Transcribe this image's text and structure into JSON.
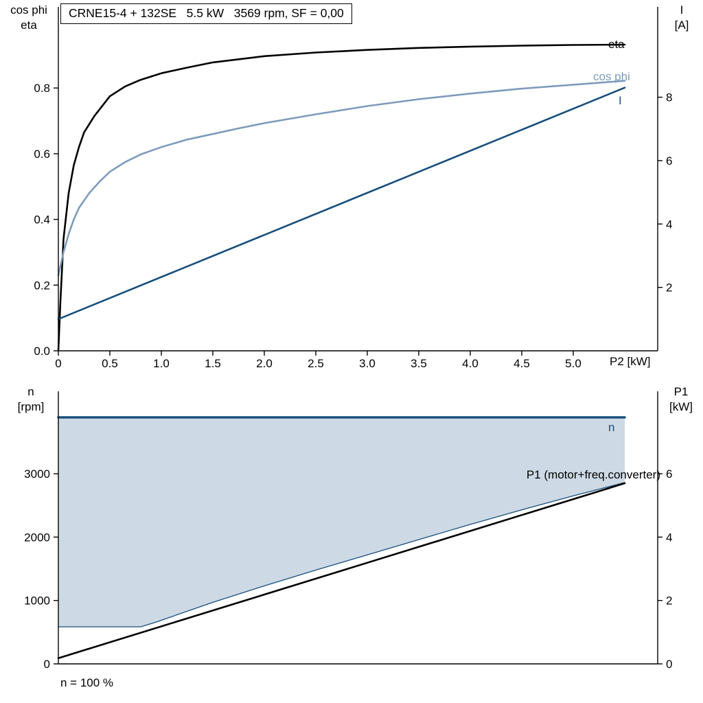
{
  "colors": {
    "axis": "#000000",
    "eta_black": "#000000",
    "cos_phi_blue": "#7d9bbb",
    "dark_blue": "#174e7c",
    "area_fill": "#cdd9e4",
    "background": "#ffffff"
  },
  "chart_data": [
    {
      "type": "line",
      "title": "CRNE15-4 + 132SE   5.5 kW   3569 rpm, SF = 0,00",
      "xlabel": "P2 [kW]",
      "ylabel_left": [
        "cos phi",
        "eta"
      ],
      "ylabel_right": [
        "I",
        "[A]"
      ],
      "x_range": [
        0,
        5.82
      ],
      "y_left_range": [
        0,
        1.047
      ],
      "y_right_range": [
        0,
        10.85
      ],
      "grid": false,
      "x_ticks": {
        "values": [
          0,
          0.5,
          1,
          1.5,
          2,
          2.5,
          3,
          3.5,
          4,
          4.5,
          5
        ],
        "labels": [
          "0",
          "0.5",
          "1.0",
          "1.5",
          "2.0",
          "2.5",
          "3.0",
          "3.5",
          "4.0",
          "4.5",
          "5.0"
        ]
      },
      "y_left_ticks": {
        "values": [
          0,
          0.2,
          0.4,
          0.6,
          0.8
        ],
        "labels": [
          "0.0",
          "0.2",
          "0.4",
          "0.6",
          "0.8"
        ]
      },
      "y_right_ticks": {
        "values": [
          2,
          4,
          6,
          8
        ],
        "labels": [
          "2",
          "4",
          "6",
          "8"
        ]
      },
      "series": [
        {
          "name": "eta",
          "color": "#000000",
          "axis": "left",
          "width": 2.6,
          "points": [
            [
              0,
              0
            ],
            [
              0.02,
              0.15
            ],
            [
              0.05,
              0.34
            ],
            [
              0.1,
              0.48
            ],
            [
              0.15,
              0.565
            ],
            [
              0.2,
              0.62
            ],
            [
              0.25,
              0.665
            ],
            [
              0.35,
              0.715
            ],
            [
              0.5,
              0.775
            ],
            [
              0.65,
              0.805
            ],
            [
              0.8,
              0.825
            ],
            [
              1,
              0.845
            ],
            [
              1.25,
              0.862
            ],
            [
              1.5,
              0.878
            ],
            [
              2,
              0.897
            ],
            [
              2.5,
              0.908
            ],
            [
              3,
              0.916
            ],
            [
              3.5,
              0.922
            ],
            [
              4,
              0.926
            ],
            [
              4.5,
              0.929
            ],
            [
              5,
              0.931
            ],
            [
              5.5,
              0.932
            ]
          ]
        },
        {
          "name": "cos phi",
          "color": "#7d9bbb",
          "axis": "left",
          "width": 2.6,
          "points": [
            [
              0,
              0.23
            ],
            [
              0.05,
              0.3
            ],
            [
              0.1,
              0.355
            ],
            [
              0.15,
              0.4
            ],
            [
              0.2,
              0.435
            ],
            [
              0.3,
              0.48
            ],
            [
              0.4,
              0.515
            ],
            [
              0.5,
              0.545
            ],
            [
              0.65,
              0.575
            ],
            [
              0.8,
              0.598
            ],
            [
              1,
              0.62
            ],
            [
              1.25,
              0.643
            ],
            [
              1.5,
              0.66
            ],
            [
              1.75,
              0.677
            ],
            [
              2,
              0.693
            ],
            [
              2.5,
              0.72
            ],
            [
              3,
              0.745
            ],
            [
              3.5,
              0.766
            ],
            [
              4,
              0.783
            ],
            [
              4.5,
              0.798
            ],
            [
              5,
              0.81
            ],
            [
              5.5,
              0.822
            ]
          ]
        },
        {
          "name": "I",
          "color": "#174e7c",
          "axis": "right",
          "width": 2.6,
          "points": [
            [
              0,
              1.0
            ],
            [
              5.5,
              8.3
            ]
          ]
        }
      ]
    },
    {
      "type": "line+area",
      "title": "",
      "xlabel": "",
      "ylabel_left": [
        "n",
        "[rpm]"
      ],
      "ylabel_right": [
        "P1",
        "[kW]"
      ],
      "annotation": "n = 100 %",
      "x_range": [
        0,
        5.82
      ],
      "y_left_range": [
        0,
        4300
      ],
      "y_right_range": [
        0,
        8.6
      ],
      "grid": false,
      "x_ticks": {
        "values": [],
        "labels": []
      },
      "y_left_ticks": {
        "values": [
          0,
          1000,
          2000,
          3000
        ],
        "labels": [
          "0",
          "1000",
          "2000",
          "3000"
        ]
      },
      "y_right_ticks": {
        "values": [
          0,
          2,
          4,
          6
        ],
        "labels": [
          "0",
          "2",
          "4",
          "6"
        ]
      },
      "area": {
        "name": "speed-range",
        "color": "#cdd9e4",
        "top_value": 3890,
        "bottom_points": [
          [
            0,
            585
          ],
          [
            0.8,
            585
          ],
          [
            0.95,
            660
          ],
          [
            1.25,
            830
          ],
          [
            1.5,
            970
          ],
          [
            2,
            1230
          ],
          [
            2.5,
            1480
          ],
          [
            3,
            1720
          ],
          [
            3.5,
            1960
          ],
          [
            4,
            2200
          ],
          [
            4.5,
            2430
          ],
          [
            5,
            2650
          ],
          [
            5.5,
            2860
          ]
        ]
      },
      "series": [
        {
          "name": "n",
          "color": "#174e7c",
          "axis": "left",
          "width": 3.4,
          "points": [
            [
              0,
              3890
            ],
            [
              5.5,
              3890
            ]
          ]
        },
        {
          "name": "min speed",
          "color": "#174e7c",
          "axis": "left",
          "width": 1.3,
          "points": [
            [
              0,
              585
            ],
            [
              0.8,
              585
            ],
            [
              0.95,
              660
            ],
            [
              1.25,
              830
            ],
            [
              1.5,
              970
            ],
            [
              2,
              1230
            ],
            [
              2.5,
              1480
            ],
            [
              3,
              1720
            ],
            [
              3.5,
              1960
            ],
            [
              4,
              2200
            ],
            [
              4.5,
              2430
            ],
            [
              5,
              2650
            ],
            [
              5.5,
              2860
            ]
          ]
        },
        {
          "name": "P1 (motor+freq.converter)",
          "color": "#000000",
          "axis": "right",
          "width": 2.6,
          "points": [
            [
              0,
              0.18
            ],
            [
              5.5,
              5.7
            ]
          ]
        }
      ]
    }
  ]
}
